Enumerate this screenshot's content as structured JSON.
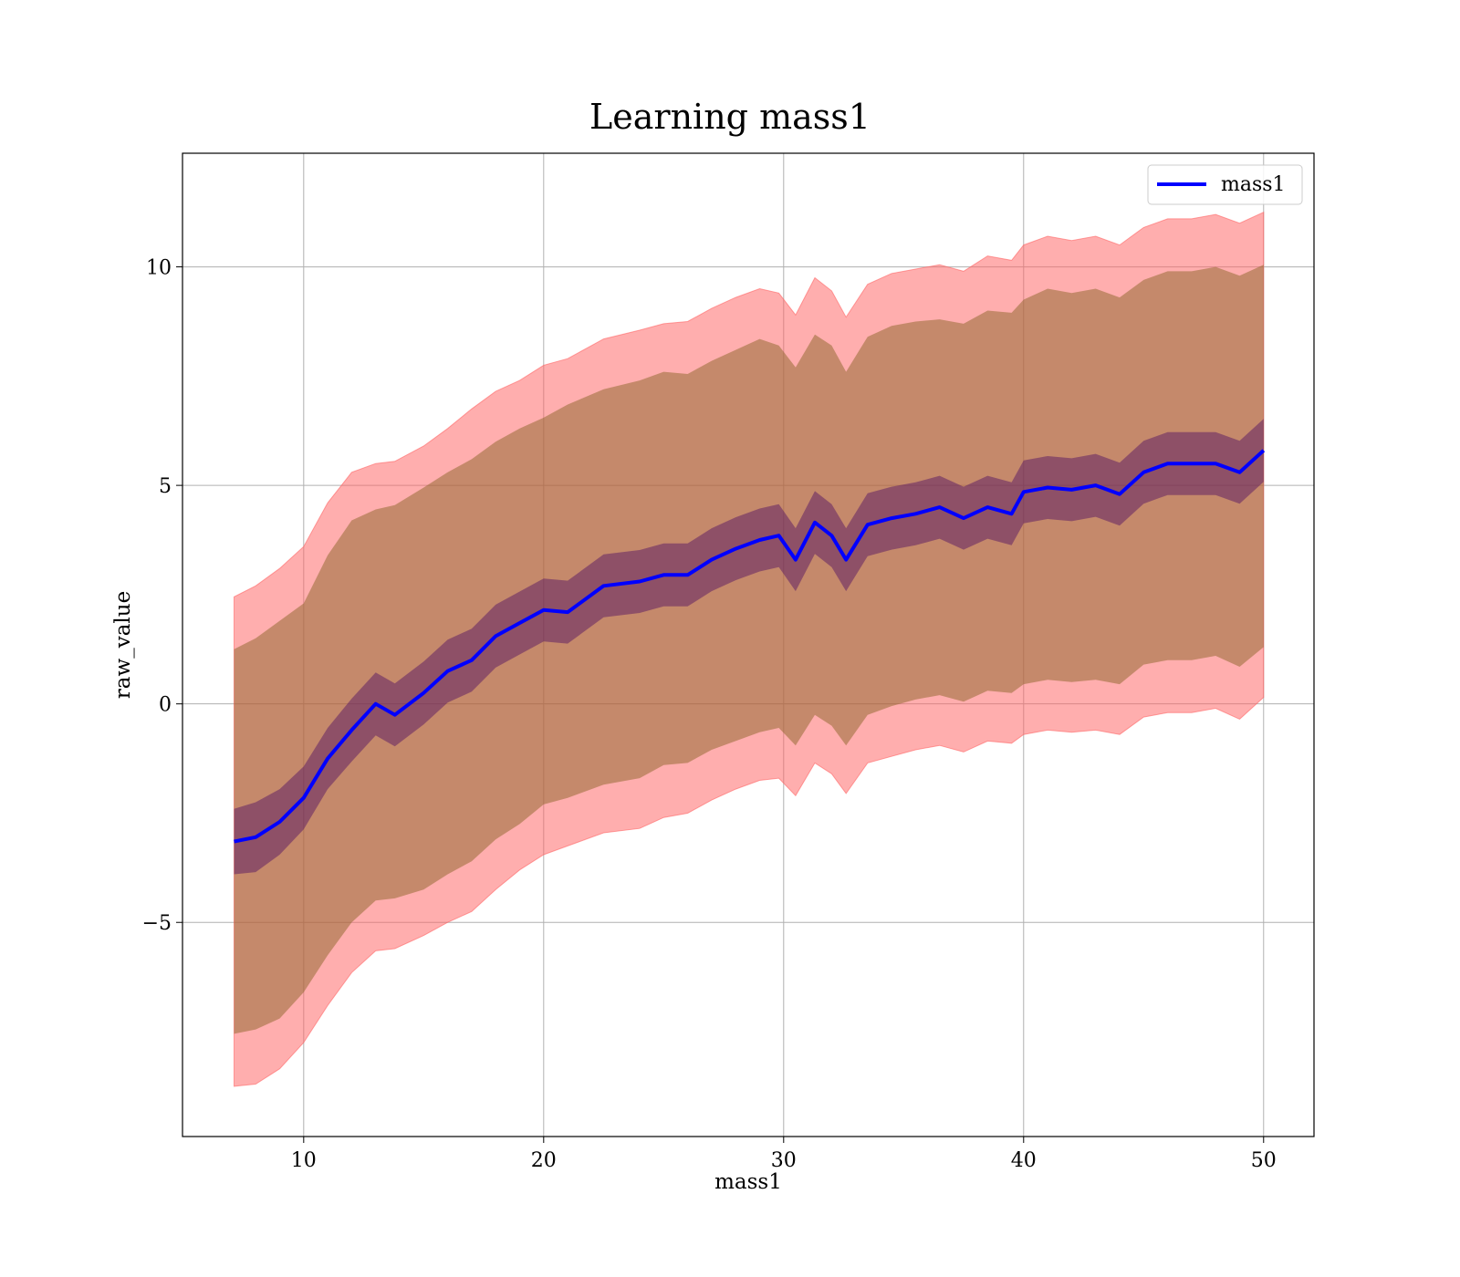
{
  "chart_data": {
    "type": "line",
    "title": "Learning mass1",
    "xlabel": "mass1",
    "ylabel": "raw_value",
    "xlim": [
      4.95,
      52.1
    ],
    "ylim": [
      -9.9,
      12.6
    ],
    "xticks": [
      10,
      20,
      30,
      40,
      50
    ],
    "yticks": [
      -5,
      0,
      5,
      10
    ],
    "ytick_labels": [
      "−5",
      "0",
      "5",
      "10"
    ],
    "grid": true,
    "legend_position": "top-right",
    "series": [
      {
        "name": "mass1",
        "color": "#0000ff",
        "x": [
          7.1,
          8.0,
          9.0,
          10.0,
          11.0,
          12.0,
          13.0,
          13.8,
          15.0,
          16.0,
          17.0,
          18.0,
          19.0,
          20.0,
          21.0,
          22.5,
          24.0,
          25.0,
          26.0,
          27.0,
          28.0,
          29.0,
          29.8,
          30.5,
          31.3,
          32.0,
          32.6,
          33.5,
          34.5,
          35.5,
          36.5,
          37.5,
          38.5,
          39.5,
          40.0,
          41.0,
          42.0,
          43.0,
          44.0,
          45.0,
          46.0,
          47.0,
          48.0,
          49.0,
          50.0
        ],
        "y": [
          -3.15,
          -3.05,
          -2.7,
          -2.15,
          -1.25,
          -0.6,
          0.0,
          -0.25,
          0.25,
          0.75,
          1.0,
          1.55,
          1.85,
          2.15,
          2.1,
          2.7,
          2.8,
          2.95,
          2.95,
          3.3,
          3.55,
          3.75,
          3.85,
          3.3,
          4.15,
          3.85,
          3.3,
          4.1,
          4.25,
          4.35,
          4.5,
          4.25,
          4.5,
          4.35,
          4.85,
          4.95,
          4.9,
          5.0,
          4.8,
          5.3,
          5.5,
          5.5,
          5.5,
          5.3,
          5.8
        ],
        "inner_band": {
          "color": "#4b0a64",
          "half_width": [
            0.75,
            0.8,
            0.75,
            0.72,
            0.7,
            0.72,
            0.72,
            0.72,
            0.72,
            0.72,
            0.72,
            0.72,
            0.72,
            0.72,
            0.72,
            0.72,
            0.72,
            0.72,
            0.72,
            0.72,
            0.72,
            0.72,
            0.72,
            0.72,
            0.72,
            0.72,
            0.72,
            0.72,
            0.72,
            0.72,
            0.72,
            0.72,
            0.72,
            0.72,
            0.72,
            0.72,
            0.72,
            0.72,
            0.72,
            0.72,
            0.72,
            0.72,
            0.72,
            0.72,
            0.72
          ]
        },
        "middle_band": {
          "color": "#8c6428",
          "upper": [
            1.25,
            1.5,
            1.9,
            2.3,
            3.4,
            4.2,
            4.45,
            4.55,
            4.95,
            5.3,
            5.6,
            6.0,
            6.3,
            6.55,
            6.85,
            7.2,
            7.4,
            7.6,
            7.55,
            7.85,
            8.1,
            8.35,
            8.2,
            7.7,
            8.45,
            8.2,
            7.6,
            8.4,
            8.65,
            8.75,
            8.8,
            8.7,
            9.0,
            8.95,
            9.25,
            9.5,
            9.4,
            9.5,
            9.3,
            9.7,
            9.9,
            9.9,
            10.0,
            9.8,
            10.05
          ],
          "lower": [
            -7.55,
            -7.45,
            -7.2,
            -6.6,
            -5.75,
            -5.0,
            -4.5,
            -4.45,
            -4.25,
            -3.9,
            -3.6,
            -3.1,
            -2.75,
            -2.3,
            -2.15,
            -1.85,
            -1.7,
            -1.4,
            -1.35,
            -1.05,
            -0.85,
            -0.65,
            -0.55,
            -0.95,
            -0.25,
            -0.5,
            -0.95,
            -0.25,
            -0.05,
            0.1,
            0.2,
            0.05,
            0.3,
            0.25,
            0.45,
            0.55,
            0.5,
            0.55,
            0.45,
            0.9,
            1.0,
            1.0,
            1.1,
            0.85,
            1.3
          ]
        },
        "outer_band": {
          "color": "#ff6464",
          "upper": [
            2.45,
            2.7,
            3.1,
            3.6,
            4.6,
            5.3,
            5.5,
            5.55,
            5.9,
            6.3,
            6.75,
            7.15,
            7.4,
            7.75,
            7.9,
            8.35,
            8.55,
            8.7,
            8.75,
            9.05,
            9.3,
            9.5,
            9.4,
            8.9,
            9.75,
            9.45,
            8.85,
            9.6,
            9.85,
            9.95,
            10.05,
            9.9,
            10.25,
            10.15,
            10.5,
            10.7,
            10.6,
            10.7,
            10.5,
            10.9,
            11.1,
            11.1,
            11.2,
            11.0,
            11.25
          ],
          "lower": [
            -8.75,
            -8.7,
            -8.35,
            -7.75,
            -6.9,
            -6.15,
            -5.65,
            -5.6,
            -5.3,
            -5.0,
            -4.75,
            -4.25,
            -3.8,
            -3.45,
            -3.25,
            -2.95,
            -2.85,
            -2.6,
            -2.5,
            -2.2,
            -1.95,
            -1.75,
            -1.7,
            -2.1,
            -1.35,
            -1.6,
            -2.05,
            -1.35,
            -1.2,
            -1.05,
            -0.95,
            -1.1,
            -0.85,
            -0.9,
            -0.7,
            -0.6,
            -0.65,
            -0.6,
            -0.7,
            -0.3,
            -0.2,
            -0.2,
            -0.1,
            -0.35,
            0.15
          ]
        }
      }
    ]
  }
}
